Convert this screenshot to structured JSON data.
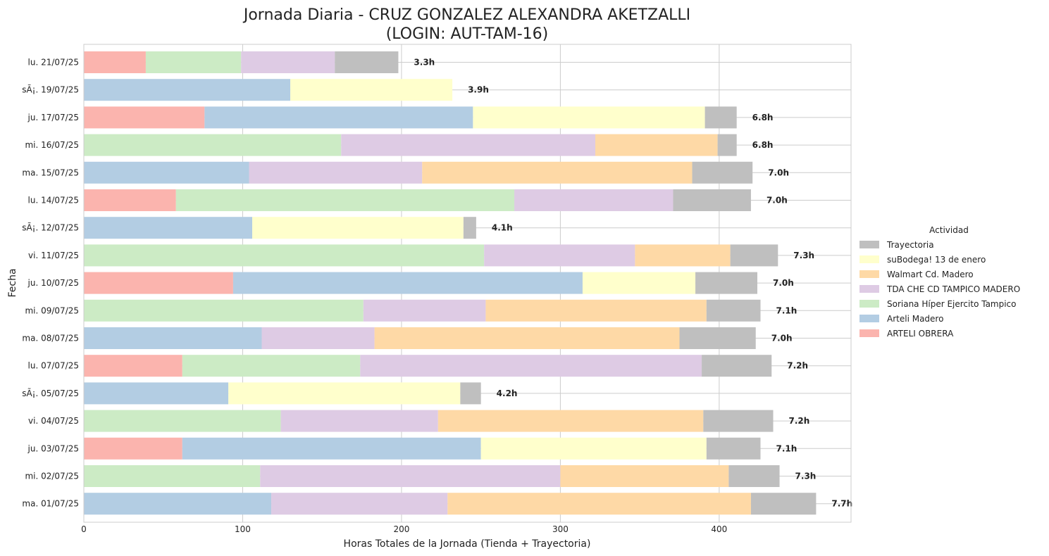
{
  "chart_data": {
    "type": "bar",
    "orientation": "horizontal",
    "stacked": true,
    "title": "Jornada Diaria - CRUZ GONZALEZ ALEXANDRA AKETZALLI",
    "subtitle": "(LOGIN: AUT-TAM-16)",
    "xlabel": "Horas Totales de la Jornada (Tienda + Trayectoria)",
    "ylabel": "Fecha",
    "xlim": [
      0,
      483
    ],
    "xticks": [
      0,
      100,
      200,
      300,
      400
    ],
    "grid": true,
    "legend_title": "Actividad",
    "legend_placement": "right",
    "categories": [
      "lu. 21/07/25",
      "sÃ¡. 19/07/25",
      "ju. 17/07/25",
      "mi. 16/07/25",
      "ma. 15/07/25",
      "lu. 14/07/25",
      "sÃ¡. 12/07/25",
      "vi. 11/07/25",
      "ju. 10/07/25",
      "mi. 09/07/25",
      "ma. 08/07/25",
      "lu. 07/07/25",
      "sÃ¡. 05/07/25",
      "vi. 04/07/25",
      "ju. 03/07/25",
      "mi. 02/07/25",
      "ma. 01/07/25"
    ],
    "series": [
      {
        "name": "ARTELI OBRERA",
        "color": "#fbb4ae",
        "values": [
          39,
          0,
          76,
          0,
          0,
          58,
          0,
          0,
          94,
          0,
          0,
          62,
          0,
          0,
          62,
          0,
          0
        ]
      },
      {
        "name": "Arteli Madero",
        "color": "#b3cde3",
        "values": [
          0,
          130,
          169,
          0,
          104,
          0,
          106,
          0,
          220,
          0,
          112,
          0,
          91,
          0,
          188,
          0,
          118
        ]
      },
      {
        "name": "Soriana Híper Ejercito Tampico",
        "color": "#ccebc5",
        "values": [
          60,
          0,
          0,
          162,
          0,
          213,
          0,
          252,
          0,
          176,
          0,
          112,
          0,
          124,
          0,
          111,
          0
        ]
      },
      {
        "name": "TDA CHE CD TAMPICO MADERO",
        "color": "#decbe4",
        "values": [
          59,
          0,
          0,
          160,
          109,
          100,
          0,
          95,
          0,
          77,
          71,
          215,
          0,
          99,
          0,
          189,
          111
        ]
      },
      {
        "name": "Walmart Cd. Madero",
        "color": "#fed9a6",
        "values": [
          0,
          0,
          0,
          77,
          170,
          0,
          0,
          60,
          0,
          139,
          192,
          0,
          0,
          167,
          0,
          106,
          191
        ]
      },
      {
        "name": "suBodega! 13 de enero",
        "color": "#ffffcc",
        "values": [
          0,
          102,
          146,
          0,
          0,
          0,
          133,
          0,
          71,
          0,
          0,
          0,
          146,
          0,
          142,
          0,
          0
        ]
      },
      {
        "name": "Trayectoria",
        "color": "#bfbfbf",
        "values": [
          40,
          0,
          20,
          12,
          38,
          49,
          8,
          30,
          39,
          34,
          48,
          44,
          13,
          44,
          34,
          32,
          41
        ]
      }
    ],
    "total_labels": [
      "3.3h",
      "3.9h",
      "6.8h",
      "6.8h",
      "7.0h",
      "7.0h",
      "4.1h",
      "7.3h",
      "7.0h",
      "7.1h",
      "7.0h",
      "7.2h",
      "4.2h",
      "7.2h",
      "7.1h",
      "7.3h",
      "7.7h"
    ],
    "legend_order": [
      "Trayectoria",
      "suBodega! 13 de enero",
      "Walmart Cd. Madero",
      "TDA CHE CD TAMPICO MADERO",
      "Soriana Híper Ejercito Tampico",
      "Arteli Madero",
      "ARTELI OBRERA"
    ]
  }
}
